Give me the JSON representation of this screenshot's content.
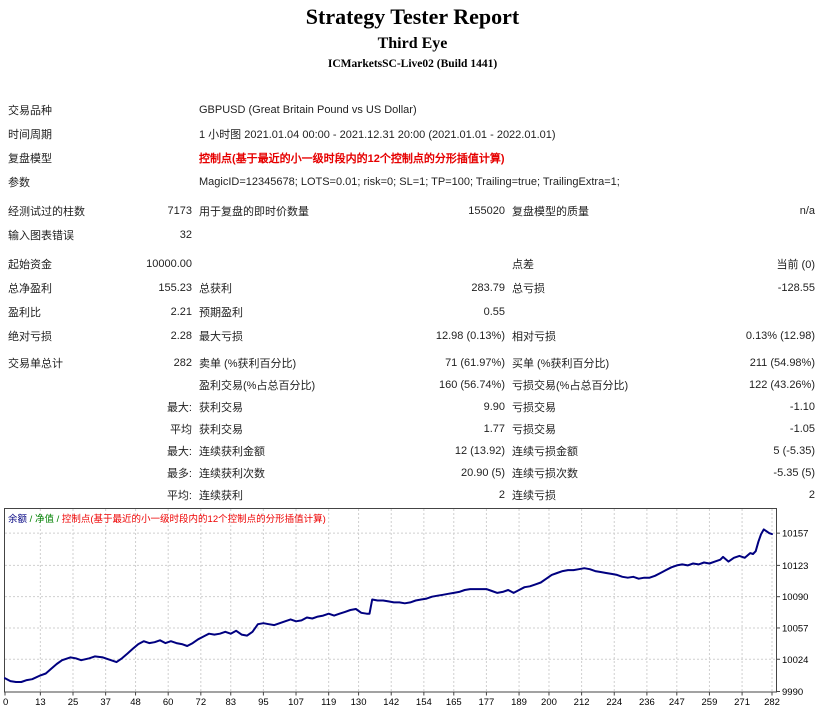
{
  "header": {
    "title": "Strategy Tester Report",
    "expert_name": "Third Eye",
    "server_build": "ICMarketsSC-Live02 (Build 1441)"
  },
  "report": {
    "blocks": [
      {
        "rh": 24,
        "rows": [
          {
            "label": "交易品种",
            "value": "GBPUSD (Great Britain Pound vs US Dollar)",
            "red": false
          },
          {
            "label": "时间周期",
            "value": "1 小时图 2021.01.04 00:00 - 2021.12.31 20:00 (2021.01.01 - 2022.01.01)",
            "red": false
          },
          {
            "label": "复盘模型",
            "value": "控制点(基于最近的小一级时段内的12个控制点的分形插值计算)",
            "red": true
          },
          {
            "label": "参数",
            "value": "MagicID=12345678; LOTS=0.01; risk=0; SL=1; TP=100; Trailing=true; TrailingExtra=1;",
            "red": false
          }
        ]
      },
      {
        "rh": 24,
        "rows": [
          {
            "cells": [
              "经测试过的柱数",
              "7173",
              "用于复盘的即时价数量",
              "155020",
              "复盘模型的质量",
              "n/a"
            ]
          },
          {
            "cells": [
              "输入图表错误",
              "32",
              "",
              "",
              "",
              ""
            ]
          }
        ]
      },
      {
        "rh": 24,
        "rows": [
          {
            "cells": [
              "起始资金",
              "10000.00",
              "",
              "",
              "点差",
              "当前 (0)"
            ]
          },
          {
            "cells": [
              "总净盈利",
              "155.23",
              "总获利",
              "283.79",
              "总亏损",
              "-128.55"
            ]
          },
          {
            "cells": [
              "盈利比",
              "2.21",
              "预期盈利",
              "0.55",
              "",
              ""
            ]
          },
          {
            "cells": [
              "绝对亏损",
              "2.28",
              "最大亏损",
              "12.98 (0.13%)",
              "相对亏损",
              "0.13% (12.98)"
            ]
          }
        ]
      },
      {
        "rh": 22,
        "rows": [
          {
            "cells": [
              "交易单总计",
              "282",
              "卖单 (%获利百分比)",
              "71 (61.97%)",
              "买单 (%获利百分比)",
              "211 (54.98%)"
            ]
          },
          {
            "cells": [
              "",
              "",
              "盈利交易(%占总百分比)",
              "160 (56.74%)",
              "亏损交易(%占总百分比)",
              "122 (43.26%)"
            ]
          },
          {
            "cells": [
              "",
              "最大:",
              "获利交易",
              "9.90",
              "亏损交易",
              "-1.10"
            ]
          },
          {
            "cells": [
              "",
              "平均",
              "获利交易",
              "1.77",
              "亏损交易",
              "-1.05"
            ]
          },
          {
            "cells": [
              "",
              "最大:",
              "连续获利金额",
              "12 (13.92)",
              "连续亏损金额",
              "5 (-5.35)"
            ]
          },
          {
            "cells": [
              "",
              "最多:",
              "连续获利次数",
              "20.90 (5)",
              "连续亏损次数",
              "-5.35 (5)"
            ]
          },
          {
            "cells": [
              "",
              "平均:",
              "连续获利",
              "2",
              "连续亏损",
              "2"
            ]
          }
        ]
      }
    ]
  },
  "chart_data": {
    "type": "line",
    "legend": [
      {
        "text": "余额",
        "color": "#000080"
      },
      {
        "text": " / ",
        "color": "#008000"
      },
      {
        "text": "净值",
        "color": "#008000"
      },
      {
        "text": " / ",
        "color": "#008000"
      },
      {
        "text": "控制点(基于最近的小一级时段内的12个控制点的分形插值计算)",
        "color": "#ee0000"
      }
    ],
    "x_ticks": [
      0,
      13,
      25,
      37,
      48,
      60,
      72,
      83,
      95,
      107,
      119,
      130,
      142,
      154,
      165,
      177,
      189,
      200,
      212,
      224,
      236,
      247,
      259,
      271,
      282
    ],
    "y_ticks": [
      10157,
      10123,
      10090,
      10057,
      10024,
      9990
    ],
    "xlim": [
      0,
      282
    ],
    "ylim": [
      9990,
      10183
    ],
    "grid": true,
    "line_color": "#000080",
    "grid_color": "#cfcfcf",
    "series": [
      {
        "name": "余额",
        "points": [
          [
            0,
            10004
          ],
          [
            2,
            10001
          ],
          [
            4,
            10000
          ],
          [
            6,
            10000
          ],
          [
            8,
            10002
          ],
          [
            10,
            10003
          ],
          [
            13,
            10007
          ],
          [
            15,
            10009
          ],
          [
            17,
            10014
          ],
          [
            19,
            10019
          ],
          [
            21,
            10023
          ],
          [
            24,
            10026
          ],
          [
            26,
            10025
          ],
          [
            28,
            10023
          ],
          [
            31,
            10025
          ],
          [
            33,
            10027
          ],
          [
            36,
            10026
          ],
          [
            38,
            10024
          ],
          [
            41,
            10021
          ],
          [
            43,
            10025
          ],
          [
            45,
            10030
          ],
          [
            47,
            10035
          ],
          [
            49,
            10040
          ],
          [
            51,
            10043
          ],
          [
            53,
            10041
          ],
          [
            55,
            10042
          ],
          [
            57,
            10044
          ],
          [
            59,
            10041
          ],
          [
            61,
            10043
          ],
          [
            63,
            10041
          ],
          [
            65,
            10040
          ],
          [
            67,
            10038
          ],
          [
            69,
            10041
          ],
          [
            71,
            10045
          ],
          [
            73,
            10048
          ],
          [
            75,
            10051
          ],
          [
            77,
            10050
          ],
          [
            79,
            10051
          ],
          [
            81,
            10053
          ],
          [
            83,
            10051
          ],
          [
            85,
            10054
          ],
          [
            87,
            10050
          ],
          [
            89,
            10049
          ],
          [
            91,
            10053
          ],
          [
            93,
            10061
          ],
          [
            95,
            10062
          ],
          [
            97,
            10061
          ],
          [
            99,
            10060
          ],
          [
            101,
            10062
          ],
          [
            103,
            10064
          ],
          [
            105,
            10066
          ],
          [
            107,
            10064
          ],
          [
            109,
            10065
          ],
          [
            111,
            10068
          ],
          [
            113,
            10067
          ],
          [
            115,
            10069
          ],
          [
            117,
            10070
          ],
          [
            119,
            10072
          ],
          [
            121,
            10070
          ],
          [
            123,
            10072
          ],
          [
            125,
            10074
          ],
          [
            127,
            10076
          ],
          [
            129,
            10077
          ],
          [
            131,
            10073
          ],
          [
            133,
            10072
          ],
          [
            134,
            10072
          ],
          [
            135,
            10087
          ],
          [
            137,
            10086
          ],
          [
            139,
            10086
          ],
          [
            141,
            10085
          ],
          [
            143,
            10084
          ],
          [
            145,
            10084
          ],
          [
            147,
            10083
          ],
          [
            149,
            10084
          ],
          [
            151,
            10086
          ],
          [
            153,
            10087
          ],
          [
            155,
            10088
          ],
          [
            157,
            10090
          ],
          [
            159,
            10091
          ],
          [
            161,
            10092
          ],
          [
            163,
            10093
          ],
          [
            165,
            10094
          ],
          [
            167,
            10095
          ],
          [
            169,
            10097
          ],
          [
            171,
            10098
          ],
          [
            173,
            10098
          ],
          [
            175,
            10098
          ],
          [
            177,
            10098
          ],
          [
            179,
            10096
          ],
          [
            181,
            10094
          ],
          [
            183,
            10095
          ],
          [
            185,
            10097
          ],
          [
            187,
            10094
          ],
          [
            189,
            10097
          ],
          [
            191,
            10100
          ],
          [
            193,
            10101
          ],
          [
            195,
            10103
          ],
          [
            197,
            10105
          ],
          [
            199,
            10109
          ],
          [
            201,
            10113
          ],
          [
            203,
            10115
          ],
          [
            205,
            10117
          ],
          [
            207,
            10118
          ],
          [
            209,
            10118
          ],
          [
            211,
            10119
          ],
          [
            213,
            10120
          ],
          [
            215,
            10119
          ],
          [
            217,
            10117
          ],
          [
            219,
            10116
          ],
          [
            221,
            10115
          ],
          [
            223,
            10114
          ],
          [
            225,
            10113
          ],
          [
            227,
            10111
          ],
          [
            229,
            10110
          ],
          [
            231,
            10111
          ],
          [
            233,
            10109
          ],
          [
            235,
            10110
          ],
          [
            237,
            10110
          ],
          [
            239,
            10112
          ],
          [
            241,
            10115
          ],
          [
            243,
            10118
          ],
          [
            245,
            10121
          ],
          [
            247,
            10123
          ],
          [
            249,
            10124
          ],
          [
            251,
            10123
          ],
          [
            253,
            10125
          ],
          [
            255,
            10124
          ],
          [
            257,
            10126
          ],
          [
            259,
            10125
          ],
          [
            261,
            10127
          ],
          [
            263,
            10129
          ],
          [
            264,
            10132
          ],
          [
            266,
            10127
          ],
          [
            268,
            10131
          ],
          [
            270,
            10133
          ],
          [
            272,
            10131
          ],
          [
            274,
            10136
          ],
          [
            275,
            10135
          ],
          [
            276,
            10138
          ],
          [
            277,
            10148
          ],
          [
            278,
            10156
          ],
          [
            279,
            10161
          ],
          [
            280,
            10159
          ],
          [
            281,
            10157
          ],
          [
            282,
            10156
          ]
        ]
      }
    ]
  }
}
